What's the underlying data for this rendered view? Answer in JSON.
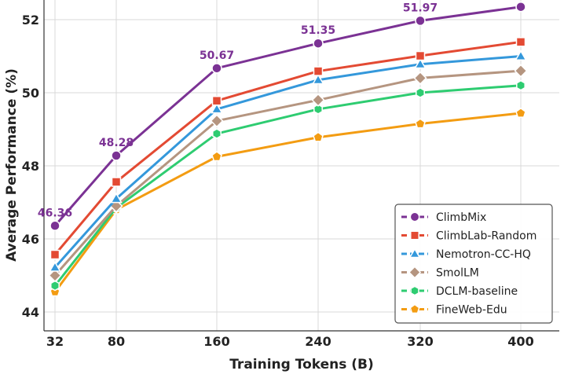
{
  "chart_data": {
    "type": "line",
    "title": "",
    "xlabel": "Training Tokens (B)",
    "ylabel": "Average Performance (%)",
    "x": [
      32,
      80,
      160,
      240,
      320,
      400
    ],
    "x_tick_labels": [
      "32",
      "80",
      "160",
      "240",
      "320",
      "400"
    ],
    "y_ticks": [
      44,
      46,
      48,
      50,
      52
    ],
    "y_tick_labels": [
      "44",
      "46",
      "48",
      "50",
      "52"
    ],
    "ylim": [
      43.6,
      52.35
    ],
    "grid": true,
    "legend_position": "bottom-right",
    "series": [
      {
        "name": "ClimbMix",
        "color": "#7b3294",
        "marker": "circle",
        "values": [
          46.36,
          48.28,
          50.67,
          51.35,
          51.97,
          52.35
        ],
        "data_labels": [
          "46.36",
          "48.28",
          "50.67",
          "51.35",
          "51.97",
          ""
        ]
      },
      {
        "name": "ClimbLab-Random",
        "color": "#e34a33",
        "marker": "square",
        "values": [
          45.57,
          47.56,
          49.78,
          50.59,
          51.01,
          51.39
        ]
      },
      {
        "name": "Nemotron-CC-HQ",
        "color": "#3498db",
        "marker": "triangle",
        "values": [
          45.22,
          47.1,
          49.55,
          50.35,
          50.78,
          51.0
        ]
      },
      {
        "name": "SmolLM",
        "color": "#b59580",
        "marker": "diamond",
        "values": [
          45.0,
          46.9,
          49.23,
          49.8,
          50.4,
          50.6
        ]
      },
      {
        "name": "DCLM-baseline",
        "color": "#2ecc71",
        "marker": "hexagon",
        "values": [
          44.72,
          46.85,
          48.88,
          49.55,
          50.0,
          50.2
        ]
      },
      {
        "name": "FineWeb-Edu",
        "color": "#f39c12",
        "marker": "pentagon",
        "values": [
          44.55,
          46.8,
          48.25,
          48.78,
          49.15,
          49.44
        ]
      }
    ]
  }
}
